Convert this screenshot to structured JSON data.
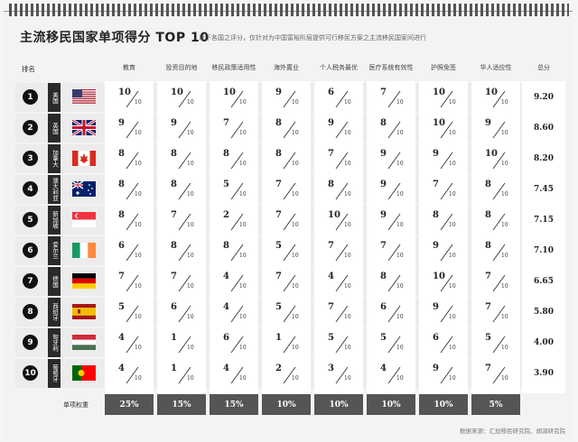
{
  "title": "主流移民国家单项得分 TOP 10",
  "subtitle": "以下各国之评分，仅针对为中国富裕阶层提供可行移民方案之主流移民国家间进行",
  "rank_header": "排名",
  "categories": [
    "教育",
    "投资目的地",
    "移民政策适用性",
    "海外置业",
    "个人税务最优",
    "医疗系统有效性",
    "护照免签",
    "华人适应性"
  ],
  "total_header": "总分",
  "denominator": "10",
  "rows": [
    {
      "rank": "1",
      "country": "美国",
      "flag": "us-flag",
      "scores": [
        "10",
        "10",
        "10",
        "9",
        "6",
        "7",
        "10",
        "10"
      ],
      "total": "9.20"
    },
    {
      "rank": "2",
      "country": "英国",
      "flag": "uk-flag",
      "scores": [
        "9",
        "9",
        "7",
        "8",
        "9",
        "8",
        "10",
        "9"
      ],
      "total": "8.60"
    },
    {
      "rank": "3",
      "country": "加拿大",
      "flag": "canada-flag",
      "scores": [
        "8",
        "8",
        "8",
        "8",
        "7",
        "9",
        "9",
        "10"
      ],
      "total": "8.20"
    },
    {
      "rank": "4",
      "country": "澳大利亚",
      "flag": "australia-flag",
      "scores": [
        "8",
        "8",
        "5",
        "7",
        "8",
        "9",
        "7",
        "8"
      ],
      "total": "7.45"
    },
    {
      "rank": "5",
      "country": "新加坡",
      "flag": "singapore-flag",
      "scores": [
        "8",
        "7",
        "2",
        "7",
        "10",
        "9",
        "8",
        "8"
      ],
      "total": "7.15"
    },
    {
      "rank": "6",
      "country": "爱尔兰",
      "flag": "ireland-flag",
      "scores": [
        "6",
        "8",
        "8",
        "5",
        "7",
        "7",
        "9",
        "8"
      ],
      "total": "7.10"
    },
    {
      "rank": "7",
      "country": "德国",
      "flag": "germany-flag",
      "scores": [
        "7",
        "7",
        "4",
        "7",
        "4",
        "8",
        "10",
        "7"
      ],
      "total": "6.65"
    },
    {
      "rank": "8",
      "country": "西班牙",
      "flag": "spain-flag",
      "scores": [
        "5",
        "6",
        "4",
        "5",
        "7",
        "6",
        "9",
        "7"
      ],
      "total": "5.80"
    },
    {
      "rank": "9",
      "country": "匈牙利",
      "flag": "hungary-flag",
      "scores": [
        "4",
        "1",
        "6",
        "1",
        "5",
        "5",
        "6",
        "5"
      ],
      "total": "4.00"
    },
    {
      "rank": "10",
      "country": "葡萄牙",
      "flag": "portugal-flag",
      "scores": [
        "4",
        "1",
        "4",
        "2",
        "3",
        "4",
        "9",
        "7"
      ],
      "total": "3.90"
    }
  ],
  "weight_label": "单项权重",
  "weights": [
    "25%",
    "15%",
    "15%",
    "10%",
    "10%",
    "10%",
    "10%",
    "5%"
  ],
  "source": "数据来源：汇加移民研究院、胡润研究院",
  "colors": {
    "badge": "#111111",
    "weight_bg": "#555555",
    "name_bg": "#2a2a2a"
  }
}
